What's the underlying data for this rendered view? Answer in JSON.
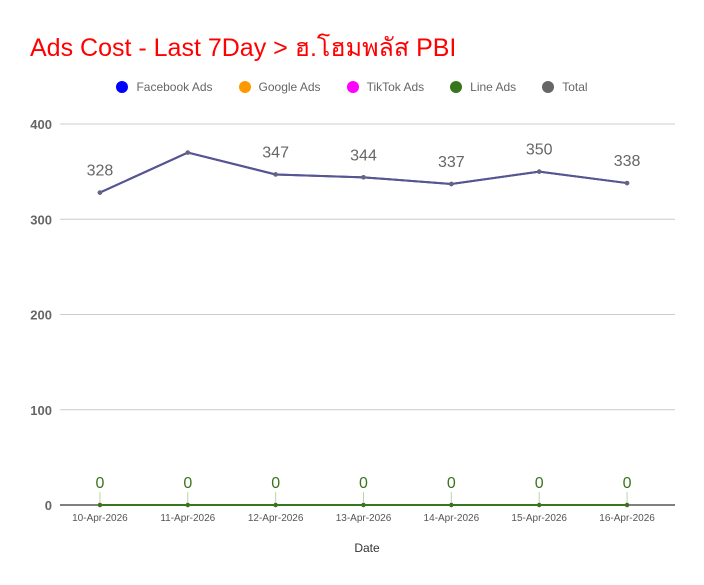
{
  "chart_data": {
    "type": "line",
    "title": "Ads Cost - Last 7Day > ฮ.โฮมพลัส PBI",
    "xlabel": "Date",
    "ylabel": "",
    "ylim": [
      0,
      400
    ],
    "yticks": [
      0,
      100,
      200,
      300,
      400
    ],
    "grid": true,
    "legend_position": "top-center",
    "categories": [
      "10-Apr-2026",
      "11-Apr-2026",
      "12-Apr-2026",
      "13-Apr-2026",
      "14-Apr-2026",
      "15-Apr-2026",
      "16-Apr-2026"
    ],
    "series": [
      {
        "name": "Facebook Ads",
        "color": "#0000ff",
        "values": [
          328,
          370,
          347,
          344,
          337,
          350,
          338
        ]
      },
      {
        "name": "Google Ads",
        "color": "#ff9900",
        "values": [
          0,
          0,
          0,
          0,
          0,
          0,
          0
        ]
      },
      {
        "name": "TikTok Ads",
        "color": "#ff00ff",
        "values": [
          0,
          0,
          0,
          0,
          0,
          0,
          0
        ]
      },
      {
        "name": "Line Ads",
        "color": "#38761d",
        "values": [
          0,
          0,
          0,
          0,
          0,
          0,
          0
        ]
      },
      {
        "name": "Total",
        "color": "#666666",
        "values": [
          328,
          370,
          347,
          344,
          337,
          350,
          338
        ]
      }
    ],
    "data_labels": {
      "total": [
        "328",
        "",
        "347",
        "344",
        "337",
        "350",
        "338"
      ],
      "line_ads": [
        "0",
        "0",
        "0",
        "0",
        "0",
        "0",
        "0"
      ]
    }
  }
}
